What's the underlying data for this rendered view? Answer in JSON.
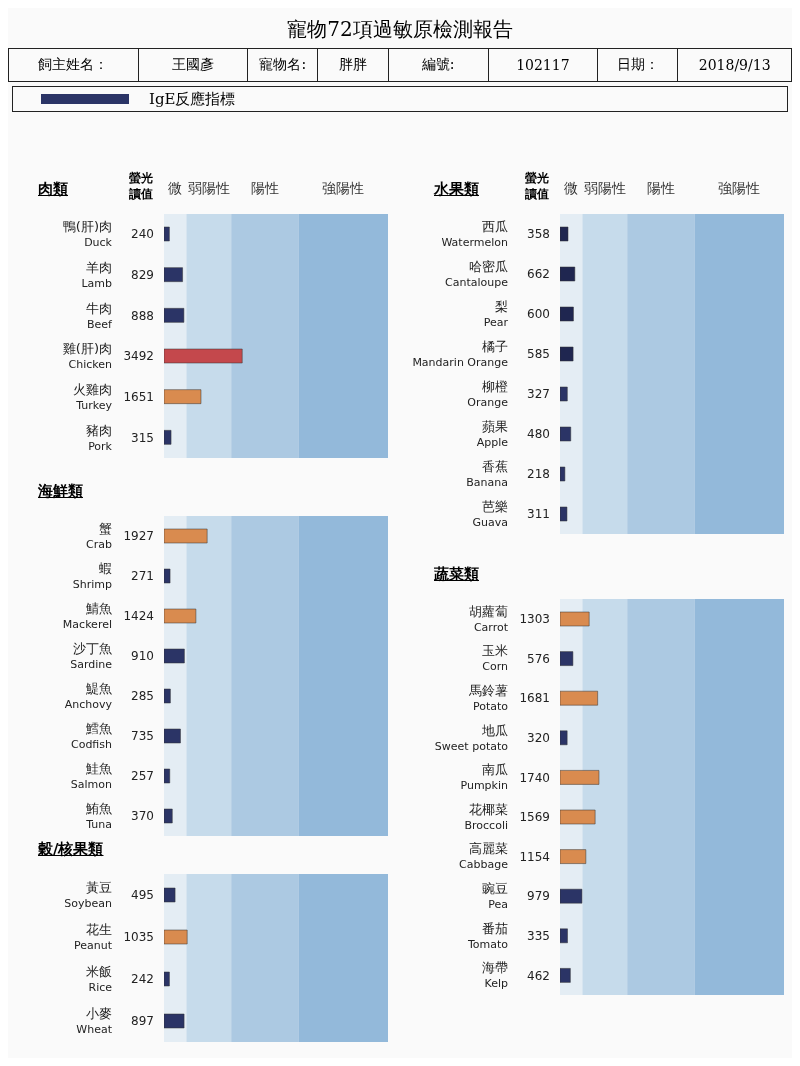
{
  "chart_data": [
    {
      "type": "bar",
      "orientation": "horizontal",
      "title": "肉類",
      "xlabel": "螢光讀值",
      "legend_title": "IgE反應指標",
      "data_labels": true,
      "annotations": [
        "寵物72項過敏原檢測報告",
        "飼主姓名：",
        "王國彥",
        "寵物名:",
        "胖胖",
        "編號:",
        "102117",
        "日期：",
        "2018/9/13"
      ],
      "categories": [
        "鴨(肝)肉\nDuck",
        "羊肉\nLamb",
        "牛肉\nBeef",
        "雞(肝)肉\nChicken",
        "火雞肉\nTurkey",
        "豬肉\nPork"
      ],
      "series": [
        {
          "values": [
            240,
            829,
            888,
            3492,
            1651,
            315
          ]
        }
      ],
      "colors": [
        "#2b3466",
        "#2b3466",
        "#2b3466",
        "#c4484c",
        "#d98b4f",
        "#2b3466"
      ],
      "bands": [
        {
          "axis": "x",
          "from": 0,
          "to": 1000,
          "label": "微",
          "color": "#e4edf4"
        },
        {
          "axis": "x",
          "from": 1000,
          "to": 3000,
          "label": "弱陽性",
          "color": "#c6dbeb"
        },
        {
          "axis": "x",
          "from": 3000,
          "to": 6000,
          "label": "陽性",
          "color": "#acc9e2"
        },
        {
          "axis": "x",
          "from": 6000,
          "to": 10000,
          "label": "強陽性",
          "color": "#93b9da"
        }
      ]
    },
    {
      "type": "bar",
      "orientation": "horizontal",
      "title": "海鮮類",
      "data_labels": true,
      "categories": [
        "蟹\nCrab",
        "蝦\nShrimp",
        "鯖魚\nMackerel",
        "沙丁魚\nSardine",
        "鯷魚\nAnchovy",
        "鱈魚\nCodfish",
        "鮭魚\nSalmon",
        "鮪魚\nTuna"
      ],
      "series": [
        {
          "values": [
            1927,
            271,
            1424,
            910,
            285,
            735,
            257,
            370
          ]
        }
      ],
      "colors": [
        "#d98b4f",
        "#2b3466",
        "#d98b4f",
        "#2b3466",
        "#2b3466",
        "#2b3466",
        "#2b3466",
        "#2b3466"
      ],
      "bands": [
        {
          "axis": "x",
          "from": 0,
          "to": 1000,
          "color": "#e4edf4"
        },
        {
          "axis": "x",
          "from": 1000,
          "to": 3000,
          "color": "#c6dbeb"
        },
        {
          "axis": "x",
          "from": 3000,
          "to": 6000,
          "color": "#acc9e2"
        },
        {
          "axis": "x",
          "from": 6000,
          "to": 10000,
          "color": "#93b9da"
        }
      ]
    },
    {
      "type": "bar",
      "orientation": "horizontal",
      "title": "穀/核果類",
      "data_labels": true,
      "categories": [
        "黃豆\nSoybean",
        "花生\nPeanut",
        "米飯\nRice",
        "小麥\nWheat"
      ],
      "series": [
        {
          "values": [
            495,
            1035,
            242,
            897
          ]
        }
      ],
      "colors": [
        "#2b3466",
        "#d98b4f",
        "#2b3466",
        "#2b3466"
      ],
      "bands": [
        {
          "axis": "x",
          "from": 0,
          "to": 1000,
          "color": "#e4edf4"
        },
        {
          "axis": "x",
          "from": 1000,
          "to": 3000,
          "color": "#c6dbeb"
        },
        {
          "axis": "x",
          "from": 3000,
          "to": 6000,
          "color": "#acc9e2"
        },
        {
          "axis": "x",
          "from": 6000,
          "to": 10000,
          "color": "#93b9da"
        }
      ]
    },
    {
      "type": "bar",
      "orientation": "horizontal",
      "title": "水果類",
      "xlabel": "螢光讀值",
      "data_labels": true,
      "categories": [
        "西瓜\nWatermelon",
        "哈密瓜\nCantaloupe",
        "梨\nPear",
        "橘子\nMandarin Orange",
        "柳橙\nOrange",
        "蘋果\nApple",
        "香蕉\nBanana",
        "芭樂\nGuava"
      ],
      "series": [
        {
          "values": [
            358,
            662,
            600,
            585,
            327,
            480,
            218,
            311
          ]
        }
      ],
      "colors": [
        "#1f2650",
        "#1f2650",
        "#1f2650",
        "#1f2650",
        "#2b3466",
        "#2b3466",
        "#2b3466",
        "#2b3466"
      ],
      "bands": [
        {
          "axis": "x",
          "from": 0,
          "to": 1000,
          "label": "微",
          "color": "#e4edf4"
        },
        {
          "axis": "x",
          "from": 1000,
          "to": 3000,
          "label": "弱陽性",
          "color": "#c6dbeb"
        },
        {
          "axis": "x",
          "from": 3000,
          "to": 6000,
          "label": "陽性",
          "color": "#acc9e2"
        },
        {
          "axis": "x",
          "from": 6000,
          "to": 10000,
          "label": "強陽性",
          "color": "#93b9da"
        }
      ]
    },
    {
      "type": "bar",
      "orientation": "horizontal",
      "title": "蔬菜類",
      "data_labels": true,
      "categories": [
        "胡蘿蔔\nCarrot",
        "玉米\nCorn",
        "馬鈴薯\nPotato",
        "地瓜\nSweet potato",
        "南瓜\nPumpkin",
        "花椰菜\nBroccoli",
        "高麗菜\nCabbage",
        "豌豆\nPea",
        "番茄\nTomato",
        "海帶\nKelp"
      ],
      "series": [
        {
          "values": [
            1303,
            576,
            1681,
            320,
            1740,
            1569,
            1154,
            979,
            335,
            462
          ]
        }
      ],
      "colors": [
        "#d98b4f",
        "#2b3466",
        "#d98b4f",
        "#2b3466",
        "#d98b4f",
        "#d98b4f",
        "#d98b4f",
        "#2b3466",
        "#2b3466",
        "#2b3466"
      ],
      "bands": [
        {
          "axis": "x",
          "from": 0,
          "to": 1000,
          "color": "#e4edf4"
        },
        {
          "axis": "x",
          "from": 1000,
          "to": 3000,
          "color": "#c6dbeb"
        },
        {
          "axis": "x",
          "from": 3000,
          "to": 6000,
          "color": "#acc9e2"
        },
        {
          "axis": "x",
          "from": 6000,
          "to": 10000,
          "color": "#93b9da"
        }
      ]
    }
  ]
}
